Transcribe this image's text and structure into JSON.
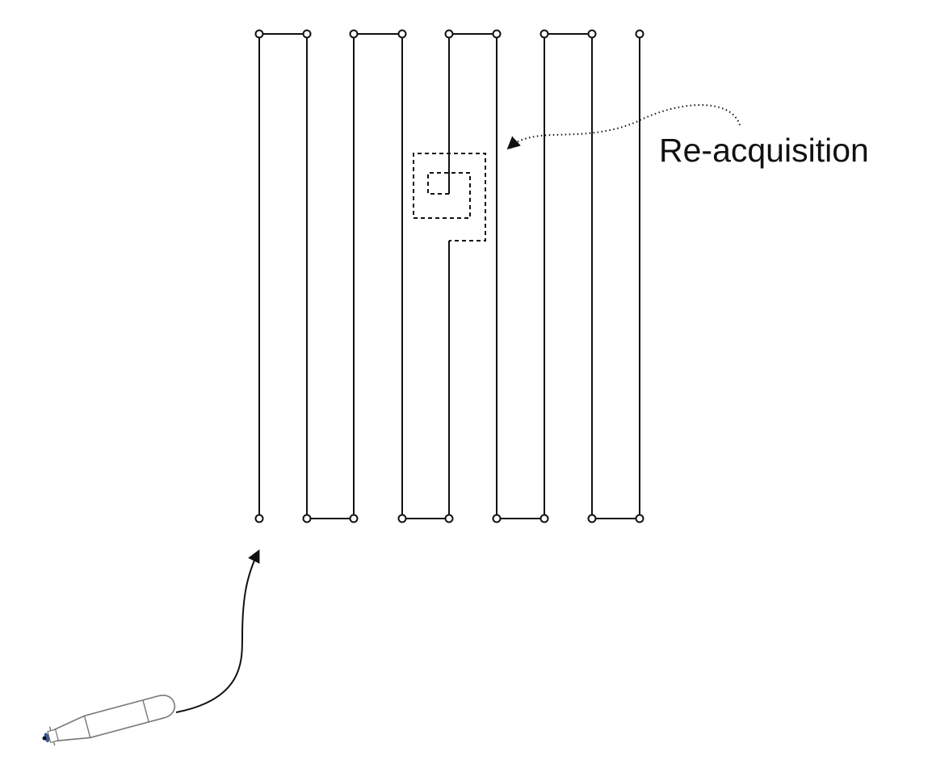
{
  "figure": {
    "annotation": "Re-acquisition",
    "icons": {
      "vehicle": "auv-vehicle-icon",
      "approach": "approach-arrow-icon",
      "pointer": "reacquisition-pointer-icon"
    },
    "colors": {
      "line": "#111111",
      "background": "#ffffff",
      "vehicle_outline": "#777777",
      "vehicle_propeller": "#3a5a9a"
    },
    "survey_pattern": {
      "type": "lawnmower",
      "tracks": 9,
      "waypoint_marker": "open-circle",
      "reacquisition_pattern": "dashed-square-spiral"
    }
  }
}
